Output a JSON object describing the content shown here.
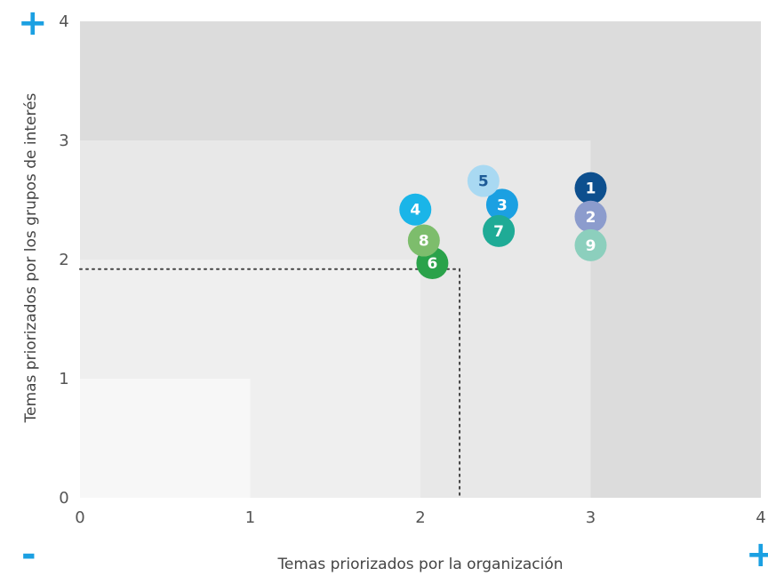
{
  "chart_data": {
    "type": "scatter",
    "xlabel": "Temas priorizados por la organización",
    "ylabel": "Temas priorizados por los grupos de interés",
    "xlim": [
      0,
      4
    ],
    "ylim": [
      0,
      4
    ],
    "x_ticks": [
      "0",
      "1",
      "2",
      "3",
      "4"
    ],
    "y_ticks": [
      "0",
      "1",
      "2",
      "3",
      "4"
    ],
    "grid": false,
    "zones": [
      {
        "upto": 4,
        "color": "#dcdcdc"
      },
      {
        "upto": 3,
        "color": "#e8e8e8"
      },
      {
        "upto": 2,
        "color": "#efefef"
      },
      {
        "upto": 1,
        "color": "#f7f7f7"
      }
    ],
    "threshold": {
      "x": 2.23,
      "y": 1.92
    },
    "points": [
      {
        "label": "1",
        "x": 3.0,
        "y": 2.6,
        "color": "#0d4f8e",
        "text_color": "#ffffff"
      },
      {
        "label": "2",
        "x": 3.0,
        "y": 2.36,
        "color": "#8c9ccd",
        "text_color": "#ffffff"
      },
      {
        "label": "3",
        "x": 2.48,
        "y": 2.46,
        "color": "#1ba0e2",
        "text_color": "#ffffff"
      },
      {
        "label": "4",
        "x": 1.97,
        "y": 2.42,
        "color": "#1ab5e8",
        "text_color": "#ffffff"
      },
      {
        "label": "5",
        "x": 2.37,
        "y": 2.66,
        "color": "#a9d9f2",
        "text_color": "#1d5b97"
      },
      {
        "label": "6",
        "x": 2.07,
        "y": 1.97,
        "color": "#2aa24a",
        "text_color": "#ffffff"
      },
      {
        "label": "7",
        "x": 2.46,
        "y": 2.24,
        "color": "#1fab96",
        "text_color": "#ffffff"
      },
      {
        "label": "8",
        "x": 2.02,
        "y": 2.16,
        "color": "#7dbd6c",
        "text_color": "#ffffff"
      },
      {
        "label": "9",
        "x": 3.0,
        "y": 2.12,
        "color": "#8ccfbd",
        "text_color": "#ffffff"
      }
    ]
  },
  "signs": {
    "y_high": "+",
    "x_low": "-",
    "x_high": "+"
  }
}
